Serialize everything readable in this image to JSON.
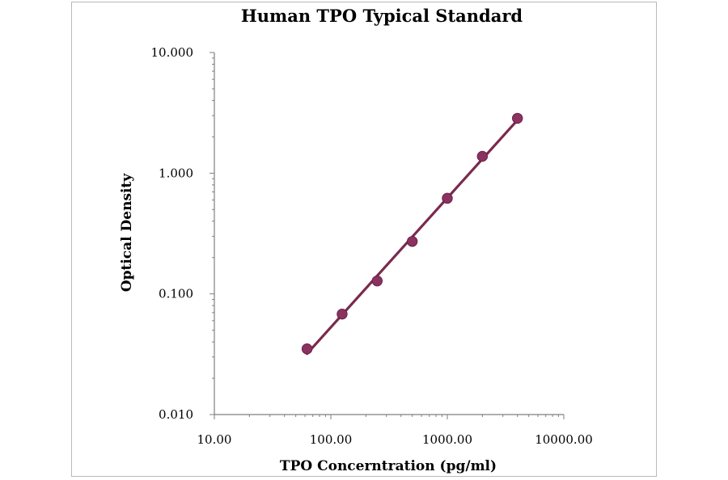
{
  "chart_data": {
    "type": "scatter",
    "title": "Human TPO Typical Standard",
    "xlabel": "TPO Concerntration (pg/ml)",
    "ylabel": "Optical Density",
    "xscale": "log",
    "yscale": "log",
    "xlim": [
      10,
      10000
    ],
    "ylim": [
      0.01,
      10
    ],
    "x_tick_labels": [
      "10.00",
      "100.00",
      "1000.00",
      "10000.00"
    ],
    "y_tick_labels": [
      "0.010",
      "0.100",
      "1.000",
      "10.000"
    ],
    "x_tick_values": [
      10,
      100,
      1000,
      10000
    ],
    "y_tick_values": [
      0.01,
      0.1,
      1,
      10
    ],
    "grid": false,
    "trendline": "power fit",
    "colors": {
      "series": "#8a3360",
      "line": "#7a2a4e",
      "axis": "#7f7f7f"
    },
    "series": [
      {
        "x": [
          62.5,
          125,
          250,
          500,
          1000,
          2000,
          4000
        ],
        "y": [
          0.035,
          0.068,
          0.128,
          0.272,
          0.62,
          1.38,
          2.85
        ]
      }
    ]
  }
}
